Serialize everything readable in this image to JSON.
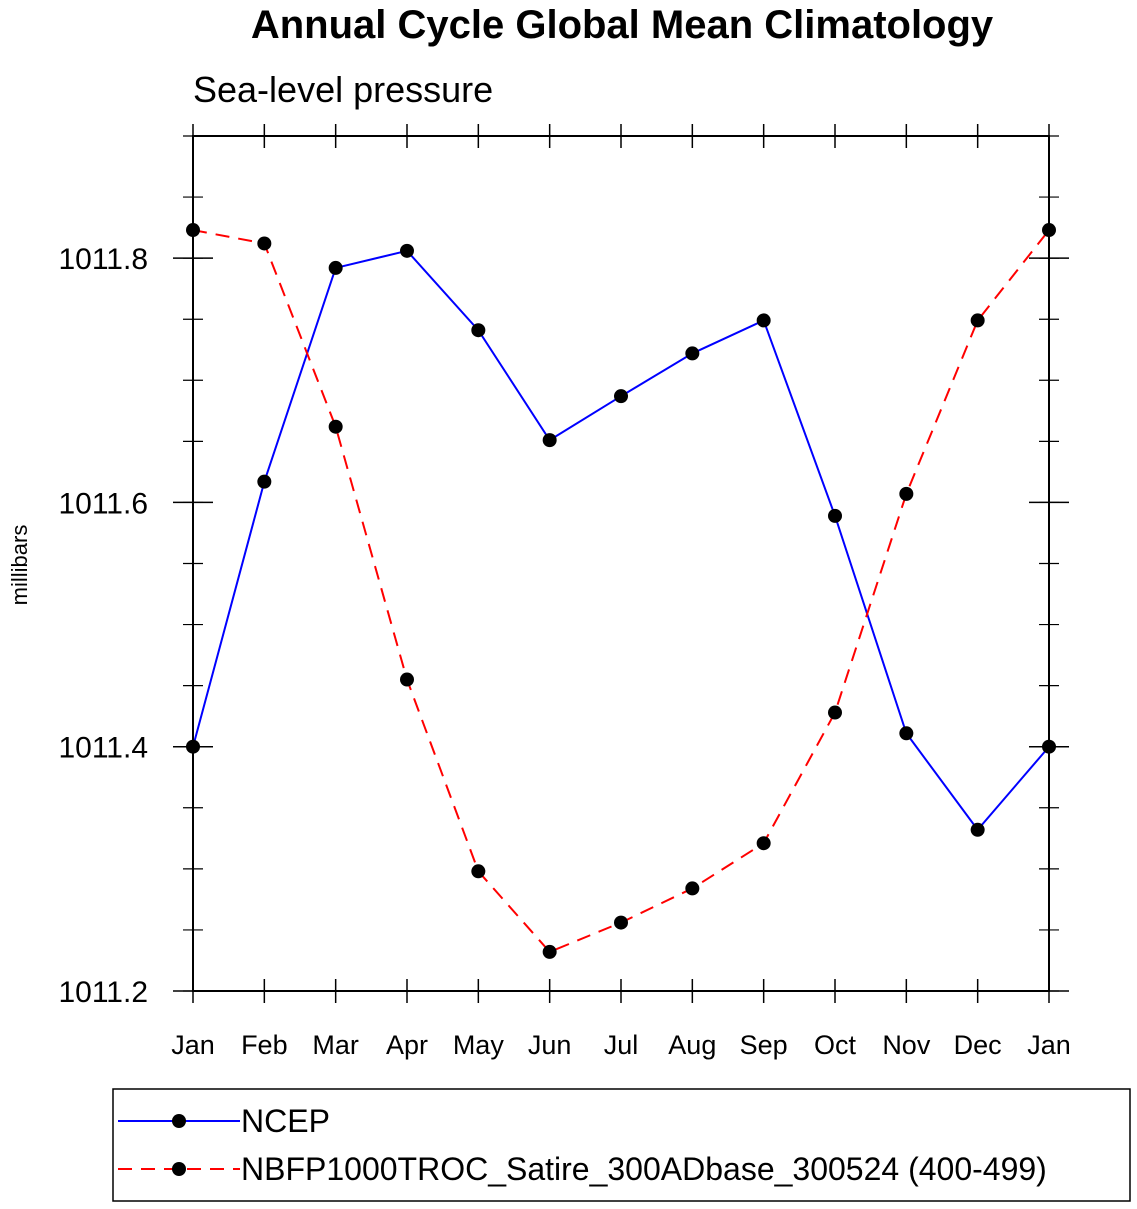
{
  "chart_data": {
    "type": "line",
    "title": "Annual Cycle Global Mean Climatology",
    "subtitle": "Sea-level pressure",
    "ylabel": "millibars",
    "xlabel": "",
    "categories": [
      "Jan",
      "Feb",
      "Mar",
      "Apr",
      "May",
      "Jun",
      "Jul",
      "Aug",
      "Sep",
      "Oct",
      "Nov",
      "Dec",
      "Jan"
    ],
    "ylim": [
      1011.2,
      1011.9
    ],
    "yticks": [
      1011.2,
      1011.4,
      1011.6,
      1011.8
    ],
    "ytick_labels": [
      "1011.2",
      "1011.4",
      "1011.6",
      "1011.8"
    ],
    "series": [
      {
        "name": "NCEP",
        "color": "#0000ff",
        "dash": "solid",
        "marker": "filled-circle",
        "values": [
          1011.4,
          1011.617,
          1011.792,
          1011.806,
          1011.741,
          1011.651,
          1011.687,
          1011.722,
          1011.749,
          1011.589,
          1011.411,
          1011.332,
          1011.4
        ]
      },
      {
        "name": "NBFP1000TROC_Satire_300ADbase_300524 (400-499)",
        "color": "#ff0000",
        "dash": "dashed",
        "marker": "filled-circle",
        "values": [
          1011.823,
          1011.812,
          1011.662,
          1011.455,
          1011.298,
          1011.232,
          1011.256,
          1011.284,
          1011.321,
          1011.428,
          1011.607,
          1011.749,
          1011.823
        ]
      }
    ],
    "legend_position": "bottom"
  }
}
